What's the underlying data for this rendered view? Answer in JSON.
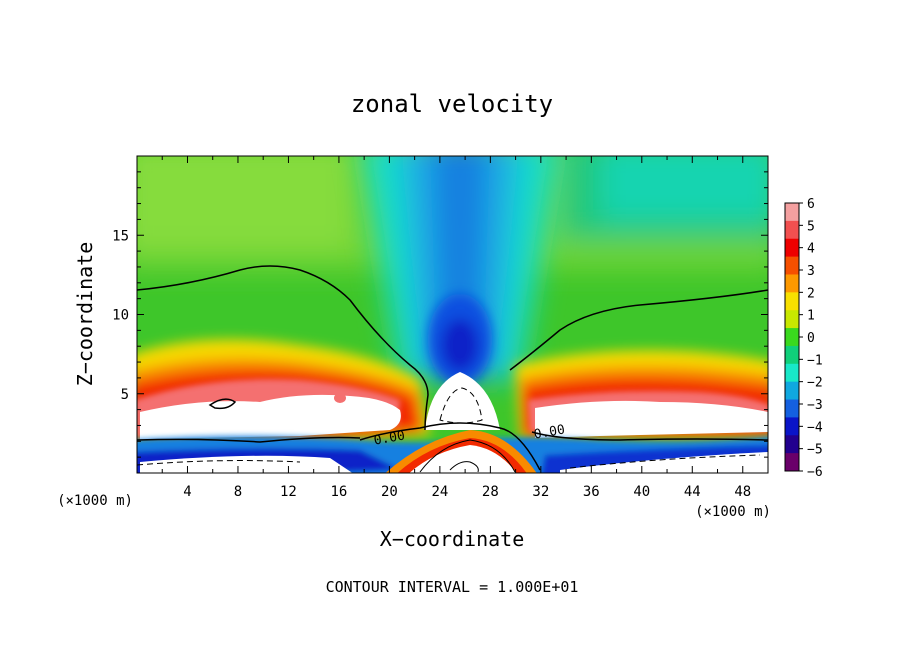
{
  "chart_data": {
    "type": "heatmap",
    "title": "zonal velocity",
    "xlabel": "X−coordinate",
    "ylabel": "Z−coordinate",
    "x_unit_left": "(×1000 m)",
    "x_unit_right": "(×1000 m)",
    "xlim": [
      0,
      50
    ],
    "ylim": [
      0,
      20
    ],
    "x_ticks": [
      4,
      8,
      12,
      16,
      20,
      24,
      28,
      32,
      36,
      40,
      44,
      48
    ],
    "y_ticks": [
      5,
      10,
      15
    ],
    "colorbar": {
      "ticks": [
        "6",
        "5",
        "4",
        "3",
        "2",
        "1",
        "0",
        "−1",
        "−2",
        "−3",
        "−4",
        "−5",
        "−6"
      ],
      "range": [
        -6,
        6
      ],
      "colors": [
        "#f4a0a0",
        "#f25050",
        "#ee0000",
        "#f65000",
        "#fd9900",
        "#f8e000",
        "#c8e800",
        "#3ad91e",
        "#10d07a",
        "#18e8c8",
        "#10a8e0",
        "#1460e0",
        "#0a14c8",
        "#22008e",
        "#6a006a"
      ]
    },
    "contour_labels": [
      "0.00",
      "0.00"
    ],
    "footer": "CONTOUR INTERVAL = 1.000E+01"
  }
}
